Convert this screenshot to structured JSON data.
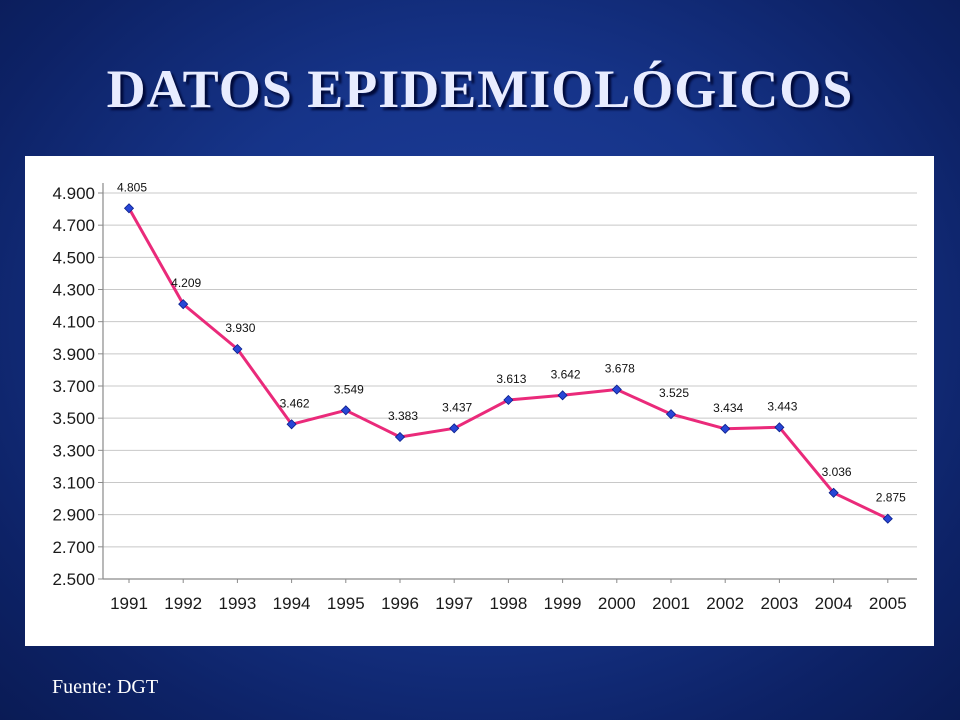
{
  "slide": {
    "title": "DATOS EPIDEMIOLÓGICOS",
    "source": "Fuente: DGT",
    "background_color": "#163489"
  },
  "chart_data": {
    "type": "line",
    "title": "",
    "xlabel": "",
    "ylabel": "",
    "categories": [
      "1991",
      "1992",
      "1993",
      "1994",
      "1995",
      "1996",
      "1997",
      "1998",
      "1999",
      "2000",
      "2001",
      "2002",
      "2003",
      "2004",
      "2005"
    ],
    "series": [
      {
        "values": [
          4805,
          4209,
          3930,
          3462,
          3549,
          3383,
          3437,
          3613,
          3642,
          3678,
          3525,
          3434,
          3443,
          3036,
          2875
        ],
        "data_labels": [
          "4.805",
          "4.209",
          "3.930",
          "3.462",
          "3.549",
          "3.383",
          "3.437",
          "3.613",
          "3.642",
          "3.678",
          "3.525",
          "3.434",
          "3.443",
          "3.036",
          "2.875"
        ],
        "line_color": "#ea2a7a",
        "marker_color": "#2846d6"
      }
    ],
    "ylim": [
      2500,
      4900
    ],
    "yticks": [
      2500,
      2700,
      2900,
      3100,
      3300,
      3500,
      3700,
      3900,
      4100,
      4300,
      4500,
      4700,
      4900
    ],
    "ytick_labels": [
      "2.500",
      "2.700",
      "2.900",
      "3.100",
      "3.300",
      "3.500",
      "3.700",
      "3.900",
      "4.100",
      "4.300",
      "4.500",
      "4.700",
      "4.900"
    ],
    "grid": true,
    "legend": "none"
  }
}
